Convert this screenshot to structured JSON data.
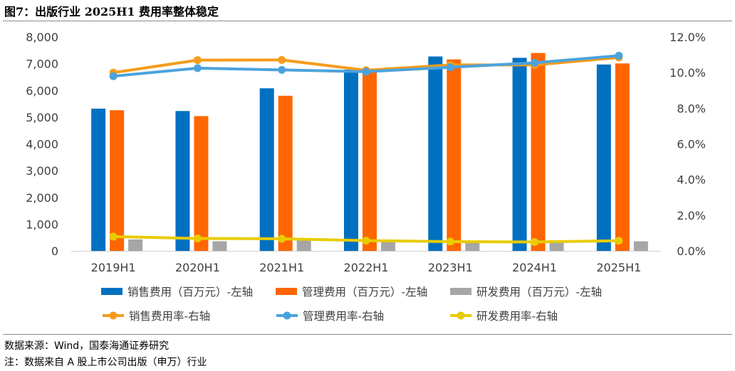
{
  "figure": {
    "title": "图7：出版行业 2025H1 费用率整体稳定",
    "source": "数据来源：Wind，国泰海通证券研究",
    "note": "注：数据来自 A 股上市公司出版（申万）行业"
  },
  "chart_data": {
    "type": "bar",
    "title": "",
    "categories": [
      "2019H1",
      "2020H1",
      "2021H1",
      "2022H1",
      "2023H1",
      "2024H1",
      "2025H1"
    ],
    "y_left": {
      "ylim": [
        0,
        8000
      ],
      "ticks": [
        "0",
        "1,000",
        "2,000",
        "3,000",
        "4,000",
        "5,000",
        "6,000",
        "7,000",
        "8,000"
      ]
    },
    "y_right": {
      "ylim": [
        0,
        0.12
      ],
      "ticks": [
        "0.0%",
        "2.0%",
        "4.0%",
        "6.0%",
        "8.0%",
        "10.0%",
        "12.0%"
      ]
    },
    "grid": false,
    "legend_position": "bottom",
    "bar_series": [
      {
        "name": "销售费用（百万元）-左轴",
        "axis": "left",
        "color": "#0070C0",
        "values": [
          5320,
          5230,
          6080,
          6780,
          7270,
          7220,
          6970
        ]
      },
      {
        "name": "管理费用（百万元）-左轴",
        "axis": "left",
        "color": "#FF6600",
        "values": [
          5260,
          5040,
          5800,
          6800,
          7160,
          7400,
          7010
        ]
      },
      {
        "name": "研发费用（百万元）-左轴",
        "axis": "left",
        "color": "#A6A6A6",
        "values": [
          430,
          360,
          400,
          330,
          300,
          310,
          360
        ]
      }
    ],
    "line_series": [
      {
        "name": "销售费用率-右轴",
        "axis": "right",
        "color": "#F59C1A",
        "values": [
          0.1,
          0.107,
          0.1071,
          0.1013,
          0.1043,
          0.1043,
          0.1085
        ]
      },
      {
        "name": "管理费用率-右轴",
        "axis": "right",
        "color": "#4BA3DD",
        "values": [
          0.098,
          0.1025,
          0.1015,
          0.1005,
          0.103,
          0.1055,
          0.1095
        ]
      },
      {
        "name": "研发费用率-右轴",
        "axis": "right",
        "color": "#E8CC00",
        "values": [
          0.008,
          0.007,
          0.0068,
          0.0058,
          0.0052,
          0.005,
          0.0057
        ]
      }
    ]
  }
}
